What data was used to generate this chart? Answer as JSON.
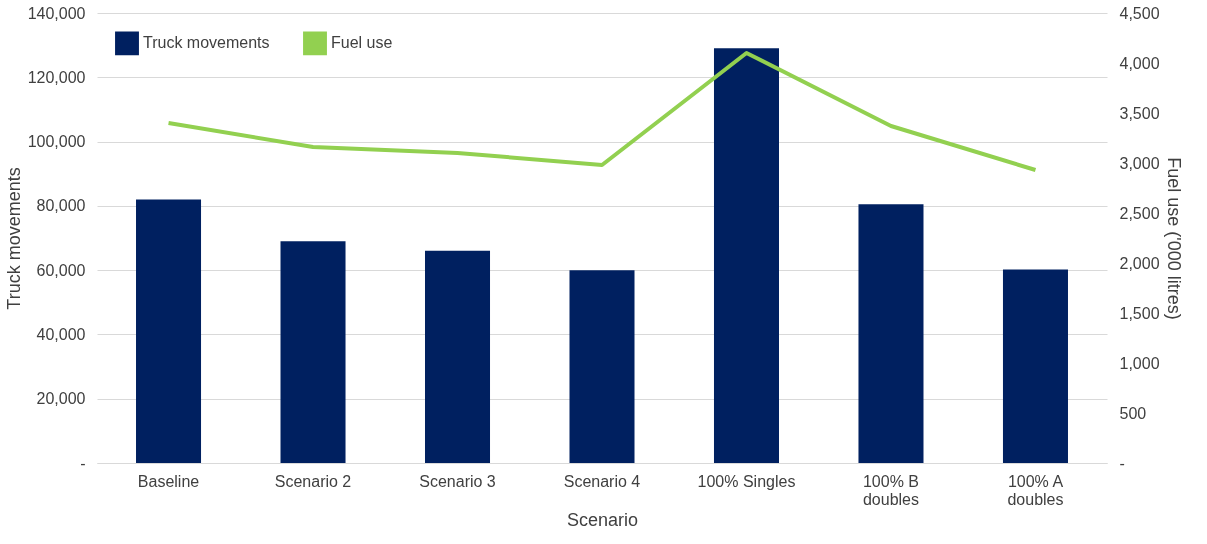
{
  "chart_data": {
    "type": "bar",
    "xlabel": "Scenario",
    "ylabel": "Truck movements",
    "y2label": "Fuel use ('000 litres)",
    "categories": [
      "Baseline",
      "Scenario 2",
      "Scenario 3",
      "Scenario 4",
      "100% Singles",
      "100% B doubles",
      "100% A doubles"
    ],
    "series": [
      {
        "name": "Truck movements",
        "color": "#002060",
        "values": [
          82000,
          69000,
          66000,
          60000,
          129000,
          80500,
          60200
        ]
      },
      {
        "name": "Fuel use",
        "type": "line",
        "axis": "y2",
        "color": "#92d050",
        "values": [
          3400,
          3160,
          3100,
          2980,
          4100,
          3370,
          2930
        ]
      }
    ],
    "ylim": [
      0,
      140000
    ],
    "yticks": [
      {
        "value": 0,
        "label": "-"
      },
      {
        "value": 20000,
        "label": "20,000"
      },
      {
        "value": 40000,
        "label": "40,000"
      },
      {
        "value": 60000,
        "label": "60,000"
      },
      {
        "value": 80000,
        "label": "80,000"
      },
      {
        "value": 100000,
        "label": "100,000"
      },
      {
        "value": 120000,
        "label": "120,000"
      },
      {
        "value": 140000,
        "label": "140,000"
      }
    ],
    "y2lim": [
      0,
      4500
    ],
    "y2ticks": [
      {
        "value": 0,
        "label": "-"
      },
      {
        "value": 500,
        "label": "500"
      },
      {
        "value": 1000,
        "label": "1,000"
      },
      {
        "value": 1500,
        "label": "1,500"
      },
      {
        "value": 2000,
        "label": "2,000"
      },
      {
        "value": 2500,
        "label": "2,500"
      },
      {
        "value": 3000,
        "label": "3,000"
      },
      {
        "value": 3500,
        "label": "3,500"
      },
      {
        "value": 4000,
        "label": "4,000"
      },
      {
        "value": 4500,
        "label": "4,500"
      }
    ],
    "grid": "y",
    "legend": "top left",
    "line_style": "solid",
    "marker": "none"
  }
}
